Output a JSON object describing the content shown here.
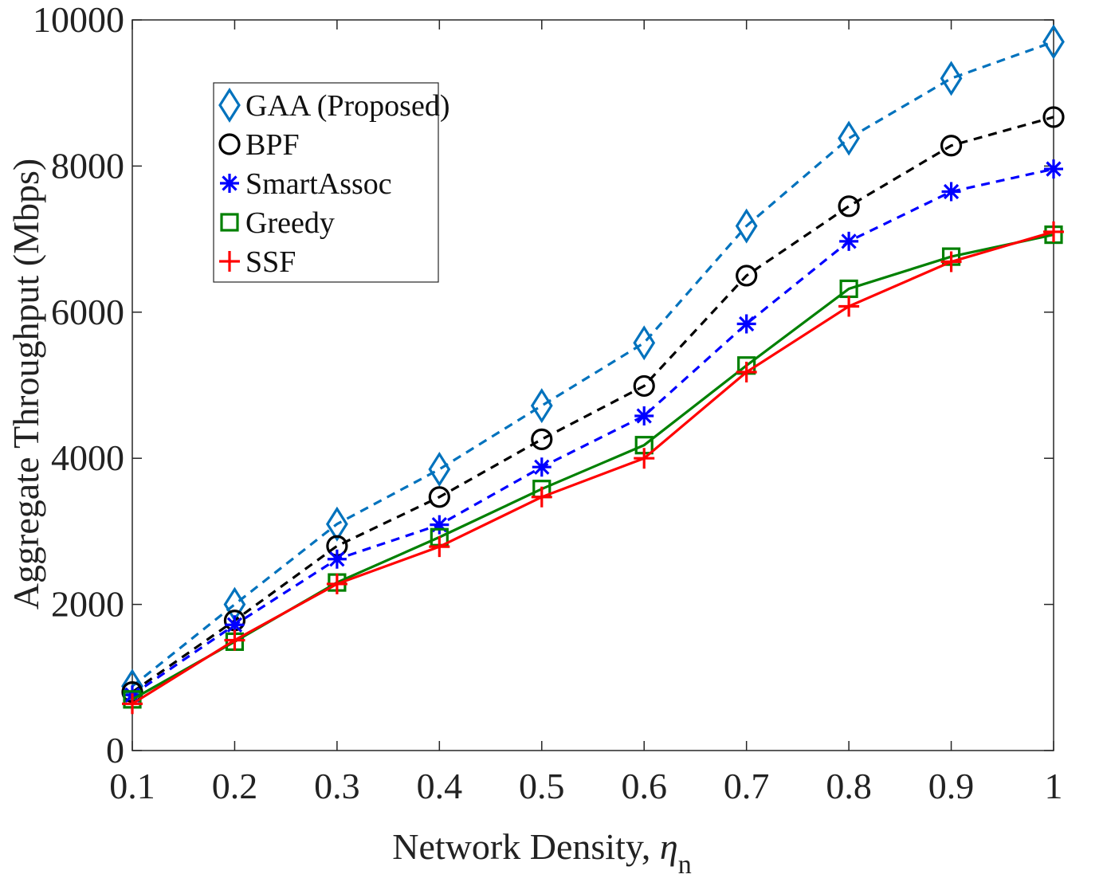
{
  "chart_data": {
    "type": "line",
    "title": "",
    "xlabel": "Network Density, ",
    "xlabel_symbol": "η",
    "xlabel_subscript": "n",
    "ylabel": "Aggregate Throughput (Mbps)",
    "x": [
      0.1,
      0.2,
      0.3,
      0.4,
      0.5,
      0.6,
      0.7,
      0.8,
      0.9,
      1
    ],
    "xticks": [
      "0.1",
      "0.2",
      "0.3",
      "0.4",
      "0.5",
      "0.6",
      "0.7",
      "0.8",
      "0.9",
      "1"
    ],
    "yticks": [
      "0",
      "2000",
      "4000",
      "6000",
      "8000",
      "10000"
    ],
    "xlim": [
      0.1,
      1
    ],
    "ylim": [
      0,
      10000
    ],
    "grid": false,
    "legend_position": "top-left",
    "series": [
      {
        "name": "GAA (Proposed)",
        "values": [
          880,
          2000,
          3100,
          3850,
          4720,
          5580,
          7180,
          8380,
          9200,
          9700
        ],
        "color": "#0072BD",
        "line": "dashed",
        "marker": "diamond"
      },
      {
        "name": "BPF",
        "values": [
          800,
          1780,
          2800,
          3470,
          4260,
          4990,
          6500,
          7450,
          8280,
          8670
        ],
        "color": "#000000",
        "line": "dashed",
        "marker": "circle"
      },
      {
        "name": "SmartAssoc",
        "values": [
          760,
          1720,
          2620,
          3090,
          3880,
          4580,
          5840,
          6970,
          7650,
          7960
        ],
        "color": "#0000FF",
        "line": "dashed",
        "marker": "asterisk"
      },
      {
        "name": "Greedy",
        "values": [
          700,
          1490,
          2300,
          2920,
          3580,
          4180,
          5270,
          6320,
          6760,
          7060
        ],
        "color": "#008000",
        "line": "solid",
        "marker": "square"
      },
      {
        "name": "SSF",
        "values": [
          640,
          1510,
          2280,
          2790,
          3470,
          4000,
          5180,
          6080,
          6690,
          7100
        ],
        "color": "#FF0000",
        "line": "solid",
        "marker": "plus"
      }
    ]
  }
}
